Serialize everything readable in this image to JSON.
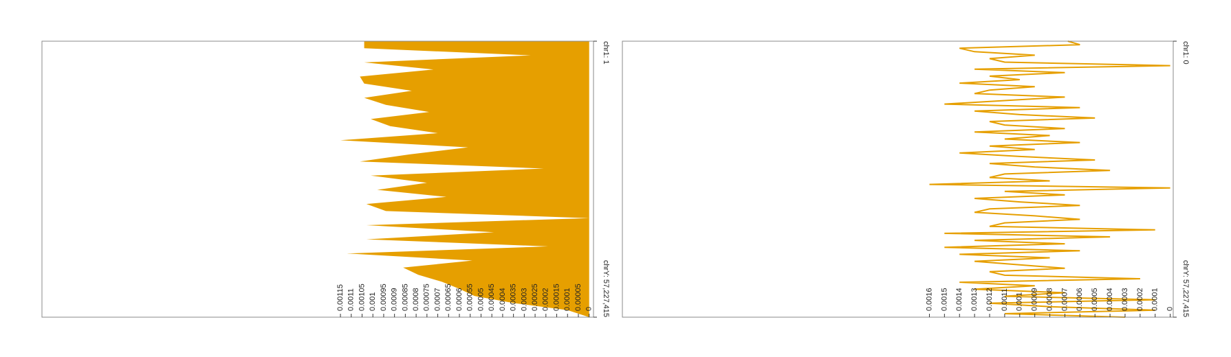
{
  "chart_data": [
    {
      "type": "area",
      "color": "#e69f00",
      "values": [
        0.00104,
        0.00104,
        0.00027,
        0.00104,
        0.00072,
        0.00106,
        0.00104,
        0.00082,
        0.00104,
        0.00094,
        0.00074,
        0.00101,
        0.00092,
        0.0007,
        0.00115,
        0.00056,
        0.00083,
        0.00106,
        0.00021,
        0.00101,
        0.00075,
        0.00098,
        0.00066,
        0.00103,
        0.00094,
        0,
        0.00103,
        0.00044,
        0.00103,
        0.00019,
        0.00112,
        0.00054,
        0.00086,
        0.00079,
        0.00068,
        0.0006,
        0.00053,
        0.00035,
        0.0001,
        0
      ],
      "xlim": [
        -2e-05,
        0.00253
      ],
      "xticks": [
        0,
        5e-05,
        0.0001,
        0.00015,
        0.0002,
        0.00025,
        0.0003,
        0.00035,
        0.0004,
        0.00045,
        0.0005,
        0.00055,
        0.0006,
        0.00065,
        0.0007,
        0.00075,
        0.0008,
        0.00085,
        0.0009,
        0.00095,
        0.001,
        0.00105,
        0.0011,
        0.00115
      ],
      "ylim": [
        1,
        57227415
      ],
      "yticks": [
        {
          "value": 1,
          "label": "chr1: 1"
        },
        {
          "value": 57227415,
          "label": "chrY: 57,227,415"
        }
      ]
    },
    {
      "type": "line",
      "color": "#e69f00",
      "values": [
        0.00068,
        0.0006,
        0.0014,
        0.0013,
        0.0009,
        0.0012,
        0.0011,
        0,
        0.0013,
        0.0007,
        0.0012,
        0.001,
        0.0014,
        0.0009,
        0.0012,
        0.0013,
        0.0007,
        0.0011,
        0.0015,
        0.0006,
        0.0013,
        0.001,
        0.0005,
        0.0012,
        0.0011,
        0.0007,
        0.0013,
        0.0008,
        0.0011,
        0.0006,
        0.0012,
        0.0009,
        0.0014,
        0.001,
        0.0005,
        0.0012,
        0.0009,
        0.0004,
        0.0011,
        0.0012,
        0.0008,
        0.0016,
        0,
        0.0011,
        0.0007,
        0.0013,
        0.001,
        0.0006,
        0.0012,
        0.0013,
        0.0009,
        0.0006,
        0.0011,
        0.0012,
        0.0001,
        0.0015,
        0.0004,
        0.0013,
        0.0007,
        0.0015,
        0.0006,
        0.0014,
        0.0008,
        0.0013,
        0.001,
        0.0007,
        0.0012,
        0.0011,
        0.0002,
        0.0014,
        0.0009,
        0.0013,
        0.0007,
        0.0011,
        0.0001,
        0.0012,
        0.0008,
        0.0001,
        0.0011,
        0.0003
      ],
      "xlim": [
        -2e-05,
        0.00364
      ],
      "xticks": [
        0,
        0.0001,
        0.0002,
        0.0003,
        0.0004,
        0.0005,
        0.0006,
        0.0007,
        0.0008,
        0.0009,
        0.001,
        0.0011,
        0.0012,
        0.0013,
        0.0014,
        0.0015,
        0.0016
      ],
      "ylim": [
        0,
        57227415
      ],
      "yticks": [
        {
          "value": 0,
          "label": "chr1: 0"
        },
        {
          "value": 57227415,
          "label": "chrY: 57,227,415"
        }
      ]
    }
  ]
}
